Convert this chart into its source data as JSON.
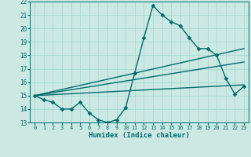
{
  "xlabel": "Humidex (Indice chaleur)",
  "bg_color": "#cbe8e3",
  "grid_color": "#aad8d2",
  "line_color": "#006b6b",
  "xlim": [
    -0.5,
    23.5
  ],
  "ylim": [
    13,
    22
  ],
  "xticks": [
    0,
    1,
    2,
    3,
    4,
    5,
    6,
    7,
    8,
    9,
    10,
    11,
    12,
    13,
    14,
    15,
    16,
    17,
    18,
    19,
    20,
    21,
    22,
    23
  ],
  "yticks": [
    13,
    14,
    15,
    16,
    17,
    18,
    19,
    20,
    21,
    22
  ],
  "series": [
    {
      "x": [
        0,
        1,
        2,
        3,
        4,
        5,
        6,
        7,
        8,
        9,
        10,
        11,
        12,
        13,
        14,
        15,
        16,
        17,
        18,
        19,
        20,
        21,
        22,
        23
      ],
      "y": [
        15.0,
        14.7,
        14.5,
        14.0,
        14.0,
        14.5,
        13.7,
        13.2,
        13.0,
        13.2,
        14.1,
        16.7,
        19.3,
        21.7,
        21.0,
        20.5,
        20.2,
        19.3,
        18.5,
        18.5,
        18.0,
        16.3,
        15.1,
        15.7
      ],
      "marker": "D",
      "markersize": 2.5,
      "linewidth": 1.0
    },
    {
      "x": [
        0,
        23
      ],
      "y": [
        15.0,
        18.5
      ],
      "marker": null,
      "markersize": 0,
      "linewidth": 1.0
    },
    {
      "x": [
        0,
        23
      ],
      "y": [
        15.0,
        17.5
      ],
      "marker": null,
      "markersize": 0,
      "linewidth": 1.0
    },
    {
      "x": [
        0,
        23
      ],
      "y": [
        15.0,
        15.8
      ],
      "marker": null,
      "markersize": 0,
      "linewidth": 1.0
    }
  ]
}
